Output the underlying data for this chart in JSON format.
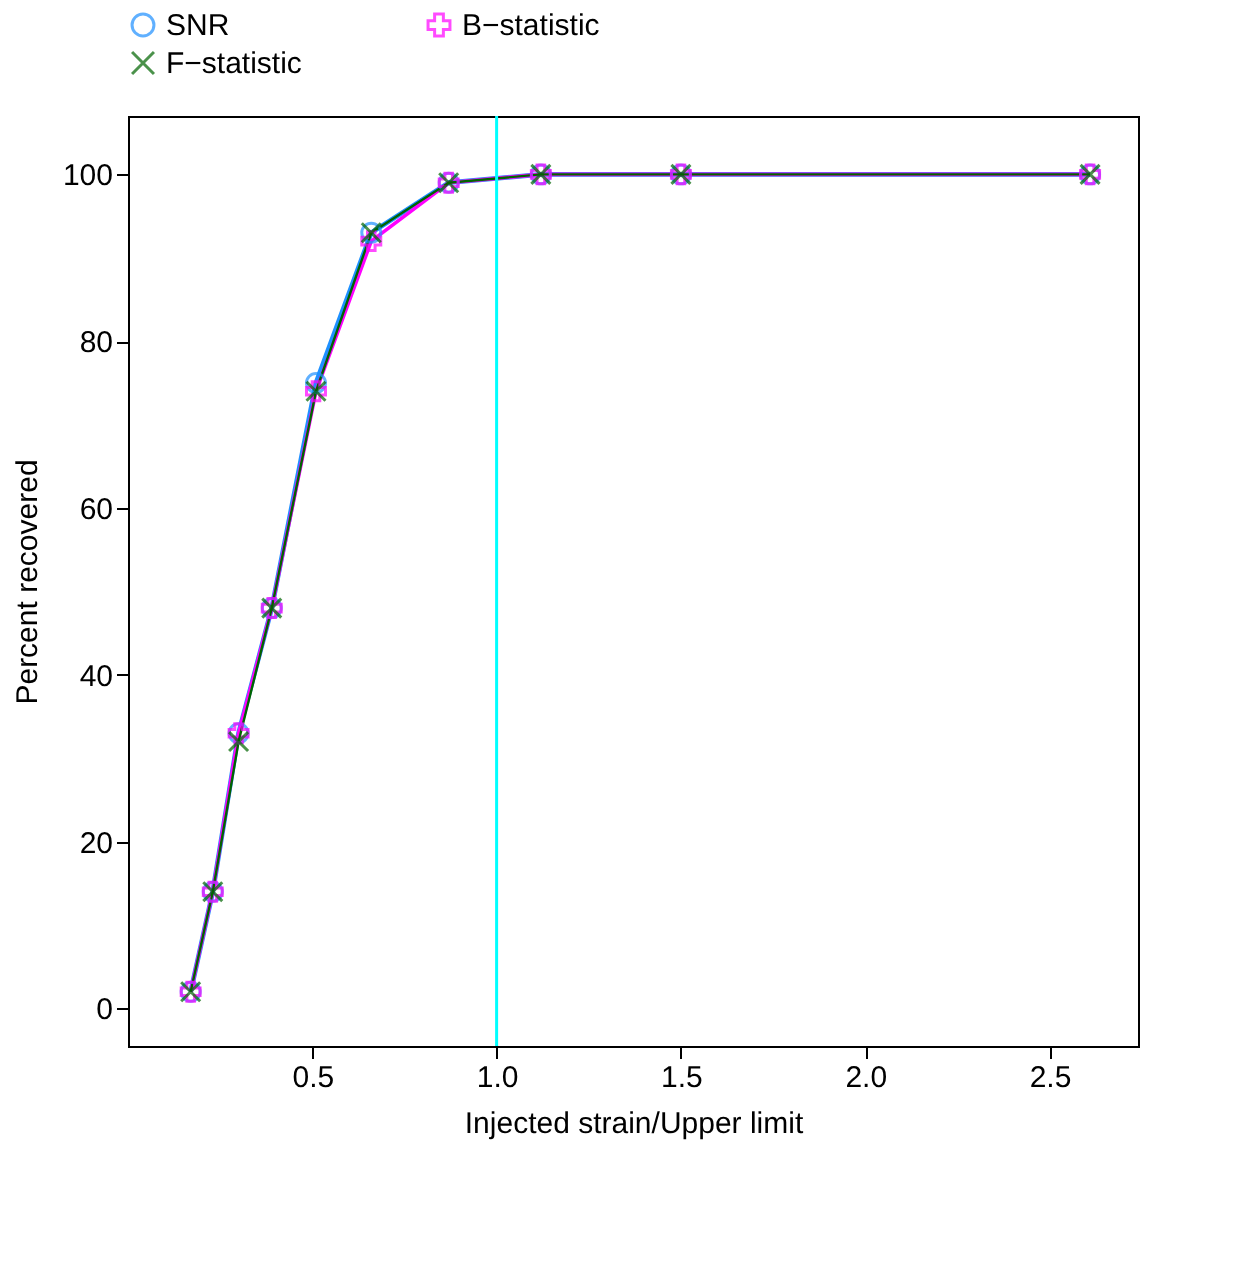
{
  "chart_data": {
    "type": "line",
    "xlabel": "Injected strain/Upper limit",
    "ylabel": "Percent recovered",
    "x": [
      0.17,
      0.23,
      0.3,
      0.39,
      0.51,
      0.66,
      0.87,
      1.12,
      1.5,
      2.61
    ],
    "series": [
      {
        "name": "SNR",
        "color": "#1e90ff",
        "marker": "circle",
        "values": [
          2,
          14,
          33,
          48,
          75,
          93,
          99,
          100,
          100,
          100
        ]
      },
      {
        "name": "B−statistic",
        "color": "#ff00ff",
        "marker": "cross",
        "values": [
          2,
          14,
          33,
          48,
          74,
          92,
          99,
          100,
          100,
          100
        ]
      },
      {
        "name": "F−statistic",
        "color": "#006400",
        "marker": "x",
        "values": [
          2,
          14,
          32,
          48,
          74,
          93,
          99,
          100,
          100,
          100
        ]
      }
    ],
    "xlim": [
      0,
      2.74
    ],
    "xticks": [
      0.5,
      {
        "value": 1,
        "label": "1.0"
      },
      1.5,
      {
        "value": 2,
        "label": "2.0"
      },
      2.5
    ],
    "ylim": [
      -4.5,
      107
    ],
    "yticks": [
      0,
      20,
      40,
      60,
      80,
      100
    ],
    "ref_lines": [
      {
        "axis": "x",
        "value": 1.0,
        "color": "#00ffff"
      }
    ],
    "legend": "top",
    "grid": false
  }
}
